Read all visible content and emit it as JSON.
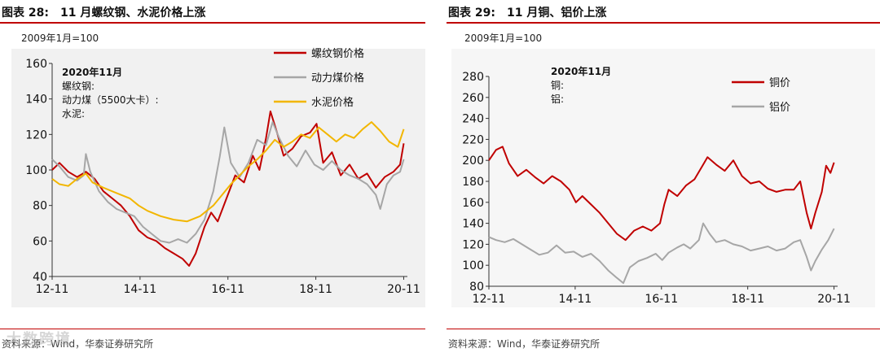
{
  "left": {
    "label": "图表 28:",
    "title": "11 月螺纹钢、水泥价格上涨",
    "unit_note": "2009年1月=100",
    "annotation": [
      "2020年11月",
      "螺纹钢:",
      "动力煤（5500大卡）:",
      "水泥:"
    ],
    "source": "资料来源：Wind，华泰证券研究所",
    "chart_data": {
      "type": "line",
      "ylim": [
        40,
        160
      ],
      "yticks": [
        40,
        60,
        80,
        100,
        120,
        140,
        160
      ],
      "xlim": [
        2012.833,
        2020.917
      ],
      "xticks": [
        {
          "label": "12-11",
          "x": 2012.833
        },
        {
          "label": "14-11",
          "x": 2014.833
        },
        {
          "label": "16-11",
          "x": 2016.833
        },
        {
          "label": "18-11",
          "x": 2018.833
        },
        {
          "label": "20-11",
          "x": 2020.833
        }
      ],
      "legend_position": "top-right",
      "series": [
        {
          "name": "螺纹钢价格",
          "color": "#c00000",
          "width": 2,
          "points": [
            [
              2012.833,
              100
            ],
            [
              2013.0,
              104
            ],
            [
              2013.2,
              99
            ],
            [
              2013.4,
              96
            ],
            [
              2013.6,
              99
            ],
            [
              2013.8,
              95
            ],
            [
              2014.0,
              88
            ],
            [
              2014.2,
              84
            ],
            [
              2014.4,
              80
            ],
            [
              2014.6,
              74
            ],
            [
              2014.8,
              66
            ],
            [
              2015.0,
              62
            ],
            [
              2015.2,
              60
            ],
            [
              2015.4,
              56
            ],
            [
              2015.6,
              53
            ],
            [
              2015.8,
              50
            ],
            [
              2015.95,
              46
            ],
            [
              2016.1,
              53
            ],
            [
              2016.3,
              68
            ],
            [
              2016.45,
              76
            ],
            [
              2016.6,
              71
            ],
            [
              2016.8,
              84
            ],
            [
              2017.0,
              97
            ],
            [
              2017.2,
              93
            ],
            [
              2017.4,
              108
            ],
            [
              2017.55,
              100
            ],
            [
              2017.7,
              118
            ],
            [
              2017.8,
              133
            ],
            [
              2017.95,
              121
            ],
            [
              2018.1,
              108
            ],
            [
              2018.3,
              112
            ],
            [
              2018.5,
              119
            ],
            [
              2018.7,
              121
            ],
            [
              2018.85,
              126
            ],
            [
              2019.0,
              104
            ],
            [
              2019.2,
              110
            ],
            [
              2019.4,
              97
            ],
            [
              2019.6,
              103
            ],
            [
              2019.8,
              95
            ],
            [
              2020.0,
              98
            ],
            [
              2020.2,
              90
            ],
            [
              2020.4,
              96
            ],
            [
              2020.6,
              99
            ],
            [
              2020.75,
              103
            ],
            [
              2020.833,
              115
            ]
          ]
        },
        {
          "name": "动力煤价格",
          "color": "#a6a6a6",
          "width": 2,
          "points": [
            [
              2012.833,
              106
            ],
            [
              2013.0,
              102
            ],
            [
              2013.2,
              96
            ],
            [
              2013.4,
              94
            ],
            [
              2013.55,
              97
            ],
            [
              2013.6,
              109
            ],
            [
              2013.7,
              99
            ],
            [
              2013.9,
              88
            ],
            [
              2014.1,
              82
            ],
            [
              2014.3,
              78
            ],
            [
              2014.5,
              76
            ],
            [
              2014.7,
              74
            ],
            [
              2014.9,
              68
            ],
            [
              2015.1,
              64
            ],
            [
              2015.3,
              60
            ],
            [
              2015.5,
              59
            ],
            [
              2015.7,
              61
            ],
            [
              2015.9,
              59
            ],
            [
              2016.1,
              64
            ],
            [
              2016.3,
              72
            ],
            [
              2016.5,
              88
            ],
            [
              2016.65,
              108
            ],
            [
              2016.75,
              124
            ],
            [
              2016.9,
              104
            ],
            [
              2017.1,
              96
            ],
            [
              2017.3,
              104
            ],
            [
              2017.5,
              117
            ],
            [
              2017.7,
              114
            ],
            [
              2017.85,
              127
            ],
            [
              2018.0,
              118
            ],
            [
              2018.2,
              108
            ],
            [
              2018.4,
              102
            ],
            [
              2018.6,
              111
            ],
            [
              2018.8,
              103
            ],
            [
              2019.0,
              100
            ],
            [
              2019.2,
              105
            ],
            [
              2019.4,
              100
            ],
            [
              2019.6,
              97
            ],
            [
              2019.8,
              95
            ],
            [
              2020.0,
              92
            ],
            [
              2020.2,
              86
            ],
            [
              2020.3,
              78
            ],
            [
              2020.45,
              92
            ],
            [
              2020.6,
              97
            ],
            [
              2020.75,
              99
            ],
            [
              2020.833,
              106
            ]
          ]
        },
        {
          "name": "水泥价格",
          "color": "#f2b600",
          "width": 2,
          "points": [
            [
              2012.833,
              95
            ],
            [
              2013.0,
              92
            ],
            [
              2013.2,
              91
            ],
            [
              2013.4,
              95
            ],
            [
              2013.6,
              98
            ],
            [
              2013.75,
              93
            ],
            [
              2014.0,
              90
            ],
            [
              2014.3,
              87
            ],
            [
              2014.6,
              84
            ],
            [
              2014.8,
              80
            ],
            [
              2015.0,
              77
            ],
            [
              2015.3,
              74
            ],
            [
              2015.6,
              72
            ],
            [
              2015.9,
              71
            ],
            [
              2016.2,
              74
            ],
            [
              2016.5,
              80
            ],
            [
              2016.7,
              86
            ],
            [
              2016.9,
              92
            ],
            [
              2017.1,
              97
            ],
            [
              2017.3,
              102
            ],
            [
              2017.5,
              106
            ],
            [
              2017.7,
              111
            ],
            [
              2017.9,
              117
            ],
            [
              2018.1,
              113
            ],
            [
              2018.3,
              116
            ],
            [
              2018.5,
              120
            ],
            [
              2018.7,
              118
            ],
            [
              2018.9,
              124
            ],
            [
              2019.1,
              120
            ],
            [
              2019.3,
              116
            ],
            [
              2019.5,
              120
            ],
            [
              2019.7,
              118
            ],
            [
              2019.9,
              123
            ],
            [
              2020.1,
              127
            ],
            [
              2020.3,
              122
            ],
            [
              2020.5,
              116
            ],
            [
              2020.7,
              113
            ],
            [
              2020.833,
              123
            ]
          ]
        }
      ]
    }
  },
  "right": {
    "label": "图表 29:",
    "title": "11 月铜、铝价上涨",
    "unit_note": "2009年1月=100",
    "annotation": [
      "2020年11月",
      "铜:",
      "铝:"
    ],
    "source": "资料来源：Wind，华泰证券研究所",
    "chart_data": {
      "type": "line",
      "ylim": [
        80,
        280
      ],
      "yticks": [
        80,
        100,
        120,
        140,
        160,
        180,
        200,
        220,
        240,
        260,
        280
      ],
      "xlim": [
        2012.833,
        2020.917
      ],
      "xticks": [
        {
          "label": "12-11",
          "x": 2012.833
        },
        {
          "label": "14-11",
          "x": 2014.833
        },
        {
          "label": "16-11",
          "x": 2016.833
        },
        {
          "label": "18-11",
          "x": 2018.833
        },
        {
          "label": "20-11",
          "x": 2020.833
        }
      ],
      "legend_position": "top-right",
      "series": [
        {
          "name": "铜价",
          "color": "#c00000",
          "width": 2,
          "points": [
            [
              2012.833,
              200
            ],
            [
              2013.0,
              210
            ],
            [
              2013.15,
              213
            ],
            [
              2013.3,
              197
            ],
            [
              2013.5,
              185
            ],
            [
              2013.7,
              191
            ],
            [
              2013.9,
              184
            ],
            [
              2014.1,
              178
            ],
            [
              2014.3,
              185
            ],
            [
              2014.5,
              180
            ],
            [
              2014.7,
              172
            ],
            [
              2014.85,
              160
            ],
            [
              2015.0,
              166
            ],
            [
              2015.2,
              158
            ],
            [
              2015.4,
              150
            ],
            [
              2015.6,
              140
            ],
            [
              2015.8,
              130
            ],
            [
              2016.0,
              124
            ],
            [
              2016.2,
              133
            ],
            [
              2016.4,
              137
            ],
            [
              2016.6,
              133
            ],
            [
              2016.8,
              140
            ],
            [
              2016.9,
              158
            ],
            [
              2017.0,
              172
            ],
            [
              2017.2,
              166
            ],
            [
              2017.4,
              176
            ],
            [
              2017.6,
              182
            ],
            [
              2017.8,
              196
            ],
            [
              2017.9,
              203
            ],
            [
              2018.1,
              196
            ],
            [
              2018.3,
              190
            ],
            [
              2018.5,
              200
            ],
            [
              2018.7,
              185
            ],
            [
              2018.9,
              178
            ],
            [
              2019.1,
              180
            ],
            [
              2019.3,
              173
            ],
            [
              2019.5,
              170
            ],
            [
              2019.7,
              172
            ],
            [
              2019.9,
              172
            ],
            [
              2020.05,
              180
            ],
            [
              2020.2,
              150
            ],
            [
              2020.3,
              135
            ],
            [
              2020.4,
              150
            ],
            [
              2020.55,
              170
            ],
            [
              2020.65,
              195
            ],
            [
              2020.75,
              188
            ],
            [
              2020.833,
              198
            ]
          ]
        },
        {
          "name": "铝价",
          "color": "#a6a6a6",
          "width": 2,
          "points": [
            [
              2012.833,
              127
            ],
            [
              2013.0,
              124
            ],
            [
              2013.2,
              122
            ],
            [
              2013.4,
              125
            ],
            [
              2013.6,
              120
            ],
            [
              2013.8,
              115
            ],
            [
              2014.0,
              110
            ],
            [
              2014.2,
              112
            ],
            [
              2014.4,
              119
            ],
            [
              2014.6,
              112
            ],
            [
              2014.8,
              113
            ],
            [
              2015.0,
              108
            ],
            [
              2015.2,
              111
            ],
            [
              2015.4,
              104
            ],
            [
              2015.6,
              95
            ],
            [
              2015.8,
              88
            ],
            [
              2015.95,
              83
            ],
            [
              2016.1,
              98
            ],
            [
              2016.3,
              104
            ],
            [
              2016.5,
              107
            ],
            [
              2016.7,
              111
            ],
            [
              2016.85,
              105
            ],
            [
              2017.0,
              112
            ],
            [
              2017.2,
              117
            ],
            [
              2017.35,
              120
            ],
            [
              2017.5,
              116
            ],
            [
              2017.7,
              124
            ],
            [
              2017.8,
              140
            ],
            [
              2017.95,
              130
            ],
            [
              2018.1,
              122
            ],
            [
              2018.3,
              124
            ],
            [
              2018.5,
              120
            ],
            [
              2018.7,
              118
            ],
            [
              2018.9,
              114
            ],
            [
              2019.1,
              116
            ],
            [
              2019.3,
              118
            ],
            [
              2019.5,
              114
            ],
            [
              2019.7,
              116
            ],
            [
              2019.9,
              122
            ],
            [
              2020.05,
              124
            ],
            [
              2020.2,
              108
            ],
            [
              2020.3,
              95
            ],
            [
              2020.4,
              104
            ],
            [
              2020.55,
              115
            ],
            [
              2020.7,
              124
            ],
            [
              2020.833,
              135
            ]
          ]
        }
      ]
    }
  }
}
